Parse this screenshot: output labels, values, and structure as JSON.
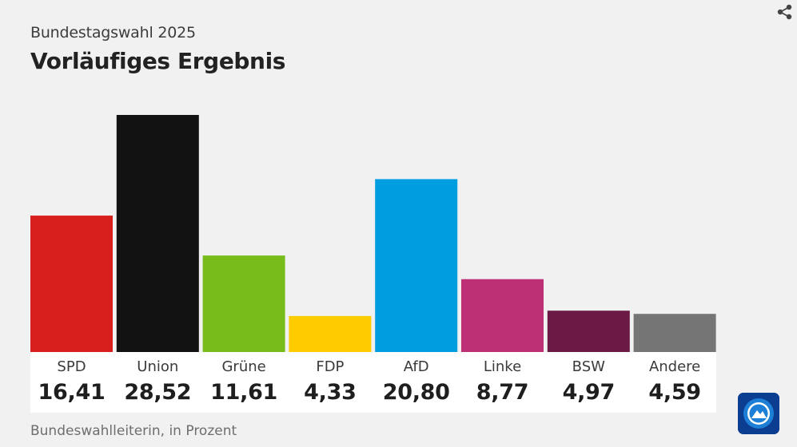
{
  "header": {
    "subtitle": "Bundestagswahl 2025",
    "title": "Vorläufiges Ergebnis"
  },
  "source": "Bundeswahlleiterin, in Prozent",
  "icons": {
    "share": "share-icon",
    "logo": "tagesschau-logo"
  },
  "chart_data": {
    "type": "bar",
    "title": "Vorläufiges Ergebnis",
    "subtitle": "Bundestagswahl 2025",
    "categories": [
      "SPD",
      "Union",
      "Grüne",
      "FDP",
      "AfD",
      "Linke",
      "BSW",
      "Andere"
    ],
    "values": [
      16.41,
      28.52,
      11.61,
      4.33,
      20.8,
      8.77,
      4.97,
      4.59
    ],
    "value_labels": [
      "16,41",
      "28,52",
      "11,61",
      "4,33",
      "20,80",
      "8,77",
      "4,97",
      "4,59"
    ],
    "colors": [
      "#d71f1d",
      "#121212",
      "#78bc1b",
      "#ffcc00",
      "#009ee0",
      "#be3075",
      "#6b1a45",
      "#757575"
    ],
    "xlabel": "",
    "ylabel": "",
    "ylim": [
      0,
      28.52
    ],
    "grid": false,
    "legend": "none"
  }
}
